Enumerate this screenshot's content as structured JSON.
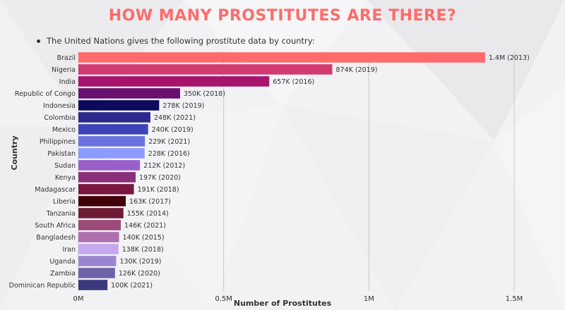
{
  "title": "HOW MANY PROSTITUTES ARE THERE?",
  "bullet_text": "The United Nations gives the following prostitute data by country:",
  "colors": {
    "title": "#ff6b6b",
    "grid": "#c8c8cc",
    "text": "#333333"
  },
  "chart_data": {
    "type": "bar",
    "orientation": "horizontal",
    "xlabel": "Number of Prostitutes",
    "ylabel": "Country",
    "xlim": [
      0,
      1500000
    ],
    "x_ticks": [
      {
        "value": 0,
        "label": "0M"
      },
      {
        "value": 500000,
        "label": "0.5M"
      },
      {
        "value": 1000000,
        "label": "1M"
      },
      {
        "value": 1500000,
        "label": "1.5M"
      }
    ],
    "grid": true,
    "bars": [
      {
        "country": "Brazil",
        "value": 1400000,
        "label": "1.4M (2013)",
        "color": "#ff6b6b"
      },
      {
        "country": "Nigeria",
        "value": 874000,
        "label": "874K (2019)",
        "color": "#d43a72"
      },
      {
        "country": "India",
        "value": 657000,
        "label": "657K (2016)",
        "color": "#a8136e"
      },
      {
        "country": "Republic of Congo",
        "value": 350000,
        "label": "350K (2018)",
        "color": "#6a1070"
      },
      {
        "country": "Indonesia",
        "value": 278000,
        "label": "278K (2019)",
        "color": "#0c0a5c"
      },
      {
        "country": "Colombia",
        "value": 248000,
        "label": "248K (2021)",
        "color": "#2c2a8c"
      },
      {
        "country": "Mexico",
        "value": 240000,
        "label": "240K (2019)",
        "color": "#3d43b8"
      },
      {
        "country": "Philippines",
        "value": 229000,
        "label": "229K (2021)",
        "color": "#6a72e0"
      },
      {
        "country": "Pakistan",
        "value": 228000,
        "label": "228K (2016)",
        "color": "#8c9bff"
      },
      {
        "country": "Sudan",
        "value": 212000,
        "label": "212K (2012)",
        "color": "#9a5fc9"
      },
      {
        "country": "Kenya",
        "value": 197000,
        "label": "197K (2020)",
        "color": "#8a2f78"
      },
      {
        "country": "Madagascar",
        "value": 191000,
        "label": "191K (2018)",
        "color": "#7a1640"
      },
      {
        "country": "Liberia",
        "value": 163000,
        "label": "163K (2017)",
        "color": "#420008"
      },
      {
        "country": "Tanzania",
        "value": 155000,
        "label": "155K (2014)",
        "color": "#6e1c36"
      },
      {
        "country": "South Africa",
        "value": 146000,
        "label": "146K (2021)",
        "color": "#9c4a78"
      },
      {
        "country": "Bangladesh",
        "value": 140000,
        "label": "140K (2015)",
        "color": "#b070b0"
      },
      {
        "country": "Iran",
        "value": 138000,
        "label": "138K (2018)",
        "color": "#c5a8ee"
      },
      {
        "country": "Uganda",
        "value": 130000,
        "label": "130K (2019)",
        "color": "#9a86d0"
      },
      {
        "country": "Zambia",
        "value": 126000,
        "label": "126K (2020)",
        "color": "#6e62a8"
      },
      {
        "country": "Dominican Republic",
        "value": 100000,
        "label": "100K (2021)",
        "color": "#3a3a7a"
      }
    ]
  }
}
